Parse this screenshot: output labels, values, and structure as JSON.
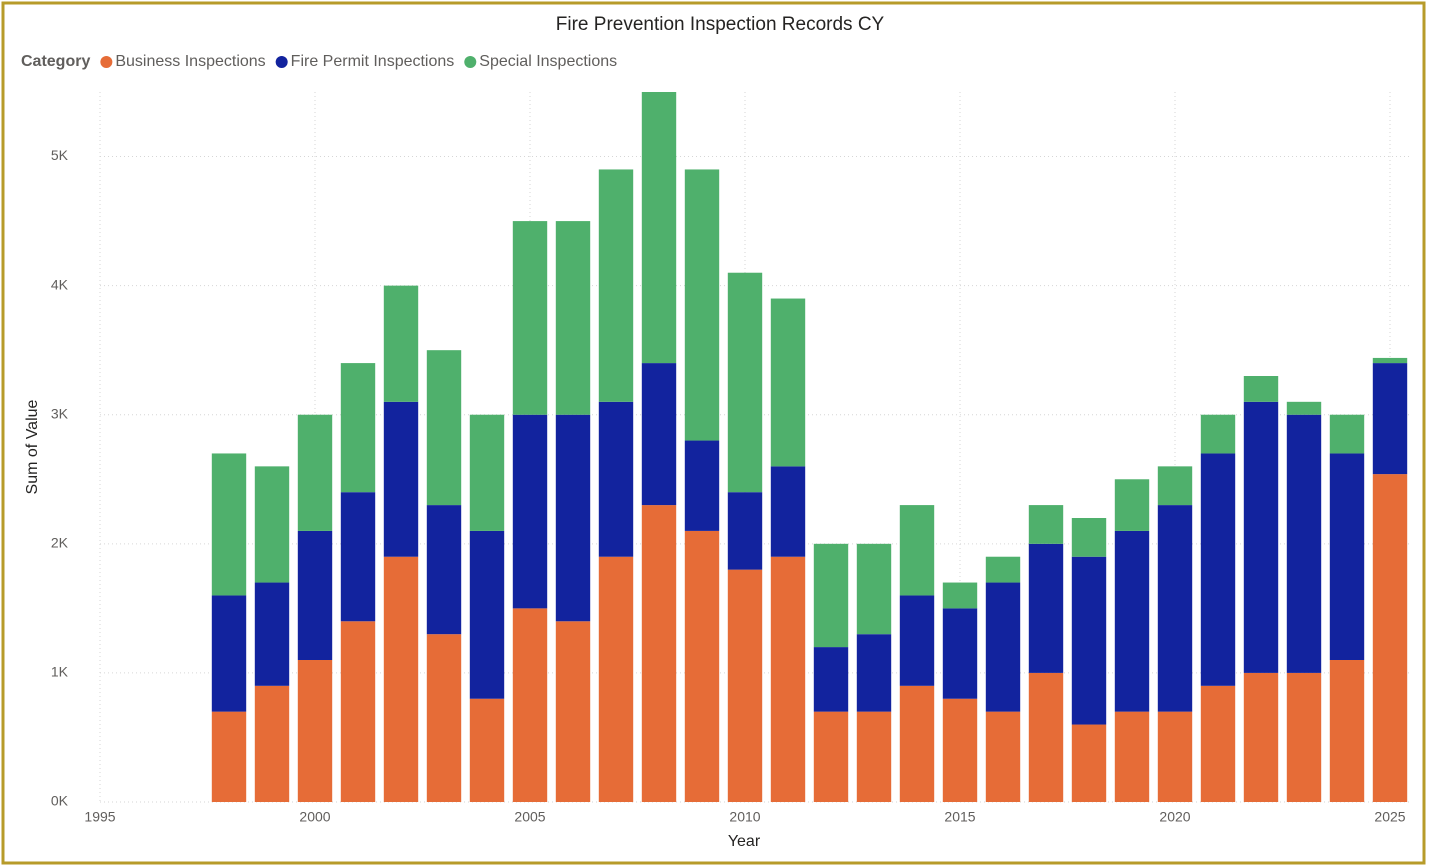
{
  "chart_data": {
    "type": "bar",
    "stacked": true,
    "title": "Fire Prevention Inspection Records CY",
    "legend_title": "Category",
    "x_label": "Year",
    "y_label": "Sum of Value",
    "x": [
      1998,
      1999,
      2000,
      2001,
      2002,
      2003,
      2004,
      2005,
      2006,
      2007,
      2008,
      2009,
      2010,
      2011,
      2012,
      2013,
      2014,
      2015,
      2016,
      2017,
      2018,
      2019,
      2020,
      2021,
      2022,
      2023,
      2024,
      2025
    ],
    "series": [
      {
        "name": "Business Inspections",
        "color": "#e66c37",
        "values": [
          700,
          900,
          1100,
          1400,
          1900,
          1300,
          800,
          1500,
          1400,
          1900,
          2300,
          2100,
          1800,
          1900,
          700,
          700,
          900,
          800,
          700,
          1000,
          600,
          700,
          700,
          900,
          1000,
          1000,
          1100,
          2540
        ]
      },
      {
        "name": "Fire Permit Inspections",
        "color": "#12239e",
        "values": [
          900,
          800,
          1000,
          1000,
          1200,
          1000,
          1300,
          1500,
          1600,
          1200,
          1100,
          700,
          600,
          700,
          500,
          600,
          700,
          700,
          1000,
          1000,
          1300,
          1400,
          1600,
          1800,
          2100,
          2000,
          1600,
          860
        ]
      },
      {
        "name": "Special Inspections",
        "color": "#4fb06c",
        "values": [
          1100,
          900,
          900,
          1000,
          900,
          1200,
          900,
          1500,
          1500,
          1800,
          2100,
          2100,
          1700,
          1300,
          800,
          700,
          700,
          200,
          200,
          300,
          300,
          400,
          300,
          300,
          200,
          100,
          300,
          40
        ]
      }
    ],
    "xlim": [
      1995,
      2025.5
    ],
    "xticks": [
      1995,
      2000,
      2005,
      2010,
      2015,
      2020,
      2025
    ],
    "ylim": [
      0,
      5500
    ],
    "yticks": [
      {
        "value": 0,
        "label": "0K"
      },
      {
        "value": 1000,
        "label": "1K"
      },
      {
        "value": 2000,
        "label": "2K"
      },
      {
        "value": 3000,
        "label": "3K"
      },
      {
        "value": 4000,
        "label": "4K"
      },
      {
        "value": 5000,
        "label": "5K"
      }
    ],
    "grid": true,
    "legend_position": "top-left"
  }
}
